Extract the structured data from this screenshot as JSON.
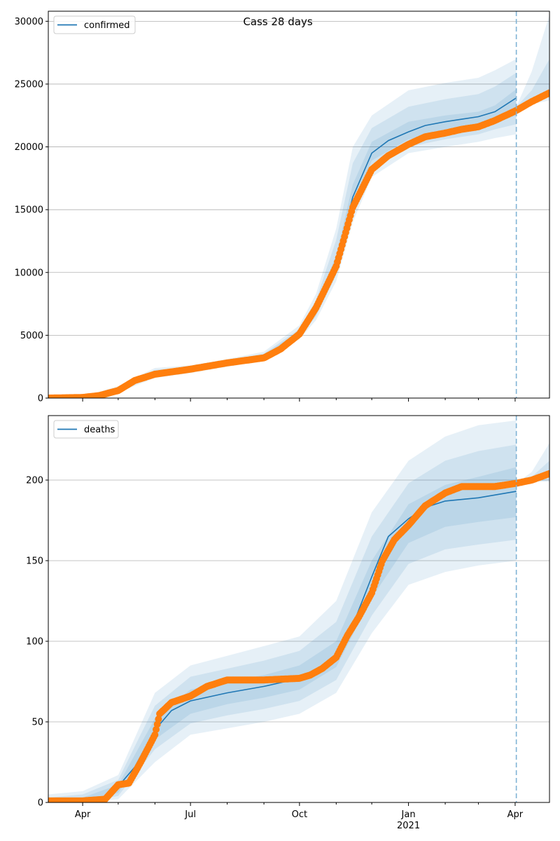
{
  "chart_data": [
    {
      "type": "line",
      "title": "Cass 28 days",
      "legend": {
        "position": "top-left",
        "entries": [
          "confirmed"
        ]
      },
      "y_ticks": [
        0,
        5000,
        10000,
        15000,
        20000,
        25000,
        30000
      ],
      "ylim": [
        0,
        30800
      ],
      "grid": "horizontal",
      "x_domain": [
        "2020-03-03",
        "2021-04-30"
      ],
      "forecast_start": "2021-04-02",
      "series": [
        {
          "name": "confirmed",
          "kind": "model-line",
          "points": [
            [
              "2020-03-03",
              0
            ],
            [
              "2020-04-01",
              60
            ],
            [
              "2020-04-15",
              200
            ],
            [
              "2020-05-01",
              700
            ],
            [
              "2020-05-15",
              1500
            ],
            [
              "2020-06-01",
              2000
            ],
            [
              "2020-07-01",
              2300
            ],
            [
              "2020-08-01",
              2800
            ],
            [
              "2020-09-01",
              3300
            ],
            [
              "2020-09-15",
              4000
            ],
            [
              "2020-10-01",
              5200
            ],
            [
              "2020-10-15",
              7000
            ],
            [
              "2020-11-01",
              10800
            ],
            [
              "2020-11-15",
              16000
            ],
            [
              "2020-12-01",
              19500
            ],
            [
              "2020-12-15",
              20500
            ],
            [
              "2021-01-01",
              21200
            ],
            [
              "2021-01-15",
              21700
            ],
            [
              "2021-02-01",
              22000
            ],
            [
              "2021-02-15",
              22200
            ],
            [
              "2021-03-01",
              22400
            ],
            [
              "2021-03-15",
              22800
            ],
            [
              "2021-04-02",
              23900
            ]
          ]
        },
        {
          "name": "",
          "kind": "observed",
          "points": [
            [
              "2020-03-03",
              0
            ],
            [
              "2020-04-01",
              50
            ],
            [
              "2020-04-15",
              200
            ],
            [
              "2020-05-01",
              600
            ],
            [
              "2020-05-15",
              1400
            ],
            [
              "2020-06-01",
              1900
            ],
            [
              "2020-07-01",
              2300
            ],
            [
              "2020-08-01",
              2800
            ],
            [
              "2020-09-01",
              3200
            ],
            [
              "2020-09-15",
              3900
            ],
            [
              "2020-10-01",
              5100
            ],
            [
              "2020-10-15",
              7200
            ],
            [
              "2020-11-01",
              10500
            ],
            [
              "2020-11-15",
              15200
            ],
            [
              "2020-12-01",
              18200
            ],
            [
              "2020-12-15",
              19300
            ],
            [
              "2021-01-01",
              20200
            ],
            [
              "2021-01-15",
              20800
            ],
            [
              "2021-02-01",
              21100
            ],
            [
              "2021-02-15",
              21400
            ],
            [
              "2021-03-01",
              21600
            ],
            [
              "2021-03-15",
              22100
            ],
            [
              "2021-04-02",
              22900
            ],
            [
              "2021-04-15",
              23600
            ],
            [
              "2021-04-30",
              24300
            ]
          ]
        }
      ],
      "uncertainty_bands": [
        {
          "level": "outer",
          "dates": [
            "2020-03-03",
            "2020-04-01",
            "2020-05-01",
            "2020-06-01",
            "2020-07-01",
            "2020-08-01",
            "2020-09-01",
            "2020-10-01",
            "2020-10-15",
            "2020-11-01",
            "2020-11-15",
            "2020-12-01",
            "2021-01-01",
            "2021-02-01",
            "2021-03-01",
            "2021-03-15",
            "2021-04-02"
          ],
          "lower": [
            0,
            30,
            450,
            1600,
            2000,
            2500,
            3000,
            4700,
            6200,
            9300,
            14000,
            17600,
            19500,
            20000,
            20400,
            20700,
            21000
          ],
          "upper": [
            0,
            110,
            950,
            2400,
            2600,
            3100,
            3700,
            5800,
            8300,
            13500,
            20000,
            22500,
            24500,
            25100,
            25500,
            26100,
            27000
          ]
        },
        {
          "level": "middle",
          "dates": [
            "2020-03-03",
            "2020-04-01",
            "2020-05-01",
            "2020-06-01",
            "2020-07-01",
            "2020-08-01",
            "2020-09-01",
            "2020-10-01",
            "2020-10-15",
            "2020-11-01",
            "2020-11-15",
            "2020-12-01",
            "2021-01-01",
            "2021-02-01",
            "2021-03-01",
            "2021-03-15",
            "2021-04-02"
          ],
          "lower": [
            0,
            40,
            550,
            1750,
            2100,
            2600,
            3100,
            4900,
            6500,
            9800,
            14800,
            18300,
            20000,
            20600,
            21000,
            21400,
            21800
          ],
          "upper": [
            0,
            90,
            850,
            2250,
            2500,
            3000,
            3550,
            5500,
            7800,
            12600,
            18700,
            21500,
            23200,
            23800,
            24200,
            24800,
            25900
          ]
        },
        {
          "level": "inner",
          "dates": [
            "2020-03-03",
            "2020-04-01",
            "2020-05-01",
            "2020-06-01",
            "2020-07-01",
            "2020-08-01",
            "2020-09-01",
            "2020-10-01",
            "2020-10-15",
            "2020-11-01",
            "2020-11-15",
            "2020-12-01",
            "2021-01-01",
            "2021-02-01",
            "2021-03-01",
            "2021-03-15",
            "2021-04-02"
          ],
          "lower": [
            0,
            50,
            620,
            1850,
            2200,
            2700,
            3200,
            5050,
            6750,
            10300,
            15400,
            18900,
            20600,
            21100,
            21500,
            21900,
            22500
          ],
          "upper": [
            0,
            75,
            780,
            2150,
            2400,
            2900,
            3450,
            5350,
            7300,
            11400,
            17000,
            20400,
            22000,
            22500,
            22800,
            23300,
            24600
          ]
        },
        {
          "level": "forecast-outer",
          "dates": [
            "2021-04-02",
            "2021-04-15",
            "2021-04-30"
          ],
          "lower": [
            23200,
            23400,
            23700
          ],
          "upper": [
            23200,
            26000,
            30500
          ]
        },
        {
          "level": "forecast-inner",
          "dates": [
            "2021-04-02",
            "2021-04-15",
            "2021-04-30"
          ],
          "lower": [
            23200,
            23500,
            24000
          ],
          "upper": [
            23200,
            24500,
            27000
          ]
        }
      ]
    },
    {
      "type": "line",
      "title": "",
      "legend": {
        "position": "top-left",
        "entries": [
          "deaths"
        ]
      },
      "y_ticks": [
        0,
        50,
        100,
        150,
        200
      ],
      "ylim": [
        0,
        240
      ],
      "grid": "horizontal",
      "x_domain": [
        "2020-03-03",
        "2021-04-30"
      ],
      "x_ticks": [
        "Apr",
        "Jul",
        "Oct",
        "Jan",
        "Apr"
      ],
      "x_tick_dates": [
        "2020-04-01",
        "2020-07-01",
        "2020-10-01",
        "2021-01-01",
        "2021-04-01"
      ],
      "x_sublabel": "2021",
      "forecast_start": "2021-04-02",
      "series": [
        {
          "name": "deaths",
          "kind": "model-line",
          "points": [
            [
              "2020-03-03",
              0
            ],
            [
              "2020-04-01",
              0
            ],
            [
              "2020-04-20",
              3
            ],
            [
              "2020-05-01",
              10
            ],
            [
              "2020-05-15",
              22
            ],
            [
              "2020-06-01",
              45
            ],
            [
              "2020-06-15",
              57
            ],
            [
              "2020-07-01",
              63
            ],
            [
              "2020-08-01",
              68
            ],
            [
              "2020-09-01",
              72
            ],
            [
              "2020-10-01",
              77
            ],
            [
              "2020-10-15",
              81
            ],
            [
              "2020-11-01",
              90
            ],
            [
              "2020-11-15",
              110
            ],
            [
              "2020-12-01",
              140
            ],
            [
              "2020-12-15",
              165
            ],
            [
              "2021-01-01",
              176
            ],
            [
              "2021-01-15",
              183
            ],
            [
              "2021-02-01",
              187
            ],
            [
              "2021-03-01",
              189
            ],
            [
              "2021-04-02",
              193
            ]
          ]
        },
        {
          "name": "",
          "kind": "observed",
          "points": [
            [
              "2020-03-03",
              1
            ],
            [
              "2020-04-01",
              1
            ],
            [
              "2020-04-20",
              2
            ],
            [
              "2020-05-01",
              11
            ],
            [
              "2020-05-10",
              12
            ],
            [
              "2020-05-20",
              25
            ],
            [
              "2020-06-01",
              42
            ],
            [
              "2020-06-05",
              55
            ],
            [
              "2020-06-15",
              62
            ],
            [
              "2020-07-01",
              66
            ],
            [
              "2020-07-15",
              72
            ],
            [
              "2020-08-01",
              76
            ],
            [
              "2020-09-01",
              76
            ],
            [
              "2020-10-01",
              77
            ],
            [
              "2020-10-10",
              79
            ],
            [
              "2020-10-20",
              83
            ],
            [
              "2020-11-01",
              90
            ],
            [
              "2020-11-10",
              103
            ],
            [
              "2020-11-20",
              115
            ],
            [
              "2020-12-01",
              130
            ],
            [
              "2020-12-10",
              150
            ],
            [
              "2020-12-20",
              163
            ],
            [
              "2021-01-01",
              172
            ],
            [
              "2021-01-15",
              184
            ],
            [
              "2021-02-01",
              192
            ],
            [
              "2021-02-15",
              196
            ],
            [
              "2021-03-01",
              196
            ],
            [
              "2021-03-15",
              196
            ],
            [
              "2021-04-02",
              198
            ],
            [
              "2021-04-15",
              200
            ],
            [
              "2021-04-30",
              204
            ]
          ]
        }
      ],
      "uncertainty_bands": [
        {
          "level": "outer",
          "dates": [
            "2020-03-03",
            "2020-04-01",
            "2020-05-01",
            "2020-06-01",
            "2020-07-01",
            "2020-08-01",
            "2020-09-01",
            "2020-10-01",
            "2020-11-01",
            "2020-12-01",
            "2021-01-01",
            "2021-02-01",
            "2021-03-01",
            "2021-04-02"
          ],
          "lower": [
            0,
            0,
            2,
            25,
            42,
            46,
            50,
            55,
            68,
            105,
            135,
            143,
            147,
            150
          ],
          "upper": [
            5,
            7,
            17,
            68,
            85,
            91,
            97,
            103,
            125,
            180,
            212,
            227,
            234,
            237
          ]
        },
        {
          "level": "middle",
          "dates": [
            "2020-03-03",
            "2020-04-01",
            "2020-05-01",
            "2020-06-01",
            "2020-07-01",
            "2020-08-01",
            "2020-09-01",
            "2020-10-01",
            "2020-11-01",
            "2020-12-01",
            "2021-01-01",
            "2021-02-01",
            "2021-03-01",
            "2021-04-02"
          ],
          "lower": [
            0,
            0,
            4,
            33,
            49,
            54,
            58,
            63,
            76,
            116,
            148,
            157,
            160,
            163
          ],
          "upper": [
            3,
            5,
            14,
            60,
            78,
            83,
            88,
            94,
            112,
            165,
            198,
            212,
            218,
            222
          ]
        },
        {
          "level": "inner",
          "dates": [
            "2020-03-03",
            "2020-04-01",
            "2020-05-01",
            "2020-06-01",
            "2020-07-01",
            "2020-08-01",
            "2020-09-01",
            "2020-10-01",
            "2020-11-01",
            "2020-12-01",
            "2021-01-01",
            "2021-02-01",
            "2021-03-01",
            "2021-04-02"
          ],
          "lower": [
            0,
            0,
            6,
            39,
            55,
            61,
            65,
            70,
            84,
            127,
            161,
            171,
            174,
            177
          ],
          "upper": [
            2,
            3,
            11,
            52,
            70,
            75,
            79,
            85,
            100,
            150,
            185,
            197,
            202,
            208
          ]
        },
        {
          "level": "forecast-outer",
          "dates": [
            "2021-04-02",
            "2021-04-15",
            "2021-04-30"
          ],
          "lower": [
            198,
            199,
            199
          ],
          "upper": [
            198,
            205,
            223
          ]
        },
        {
          "level": "forecast-inner",
          "dates": [
            "2021-04-02",
            "2021-04-15",
            "2021-04-30"
          ],
          "lower": [
            198,
            199,
            200
          ],
          "upper": [
            198,
            202,
            212
          ]
        }
      ]
    }
  ],
  "colors": {
    "model_line": "#1f77b4",
    "observed": "#ff7f0e",
    "band": "#1f77b4",
    "forecast_line": "#7fb3d5",
    "grid": "#b0b0b0"
  }
}
